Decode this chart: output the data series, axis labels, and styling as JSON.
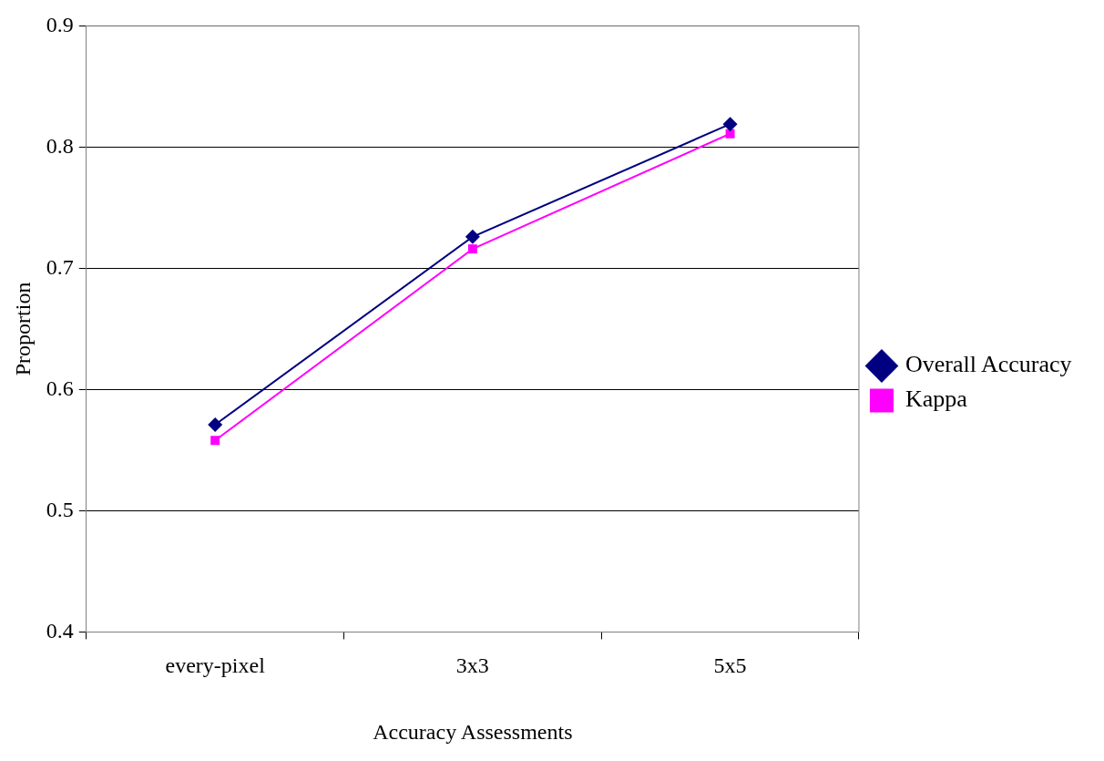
{
  "chart_data": {
    "type": "line",
    "xlabel": "Accuracy Assessments",
    "ylabel": "Proportion",
    "categories": [
      "every-pixel",
      "3x3",
      "5x5"
    ],
    "series": [
      {
        "name": "Overall Accuracy",
        "color": "#000080",
        "marker": "diamond",
        "values": [
          0.571,
          0.726,
          0.819
        ]
      },
      {
        "name": "Kappa",
        "color": "#ff00ff",
        "marker": "square",
        "values": [
          0.558,
          0.716,
          0.811
        ]
      }
    ],
    "ylim": [
      0.4,
      0.9
    ],
    "yticks": [
      0.4,
      0.5,
      0.6,
      0.7,
      0.8,
      0.9
    ],
    "grid": "y",
    "legend": "right",
    "line_style": "solid"
  }
}
